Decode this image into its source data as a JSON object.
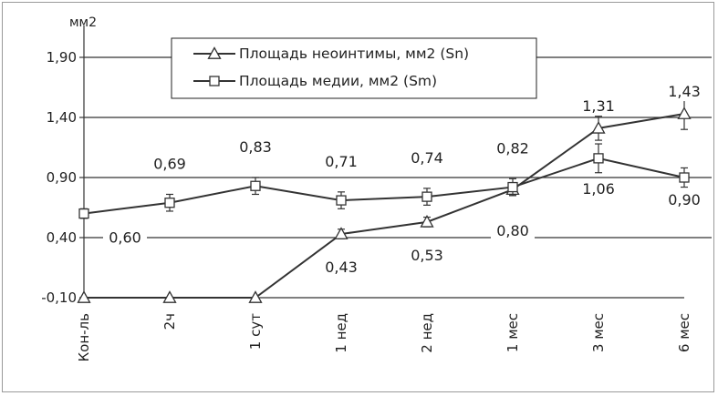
{
  "chart_data": {
    "type": "line",
    "ylabel": "мм2",
    "ylim": [
      -0.1,
      1.9
    ],
    "yticks": [
      "1,90",
      "1,40",
      "0,90",
      "0,40",
      "-0,10"
    ],
    "ytick_values": [
      1.9,
      1.4,
      0.9,
      0.4,
      -0.1
    ],
    "categories": [
      "Кон-ль",
      "2ч",
      "1 сут",
      "1 нед",
      "2 нед",
      "1 мес",
      "3 мес",
      "6 мес"
    ],
    "legend_position": "top-center",
    "series": [
      {
        "name": "Площадь неоинтимы, мм2 (Sn)",
        "marker": "triangle",
        "values": [
          -0.1,
          -0.1,
          -0.1,
          0.43,
          0.53,
          0.8,
          1.31,
          1.43
        ],
        "labels": [
          "",
          "",
          "",
          "0,43",
          "0,53",
          "0,80",
          "1,31",
          "1,43"
        ],
        "errors": [
          0,
          0,
          0,
          0.04,
          0.04,
          0.05,
          0.1,
          0.13
        ]
      },
      {
        "name": "Площадь медии, мм2 (Sm)",
        "marker": "square",
        "values": [
          0.6,
          0.69,
          0.83,
          0.71,
          0.74,
          0.82,
          1.06,
          0.9
        ],
        "labels": [
          "0,60",
          "0,69",
          "0,83",
          "0,71",
          "0,74",
          "0,82",
          "1,06",
          "0,90"
        ],
        "errors": [
          0.04,
          0.07,
          0.07,
          0.07,
          0.07,
          0.07,
          0.12,
          0.08
        ]
      }
    ],
    "colors": {
      "line": "#333333",
      "grid": "#333333",
      "background": "#ffffff"
    }
  }
}
